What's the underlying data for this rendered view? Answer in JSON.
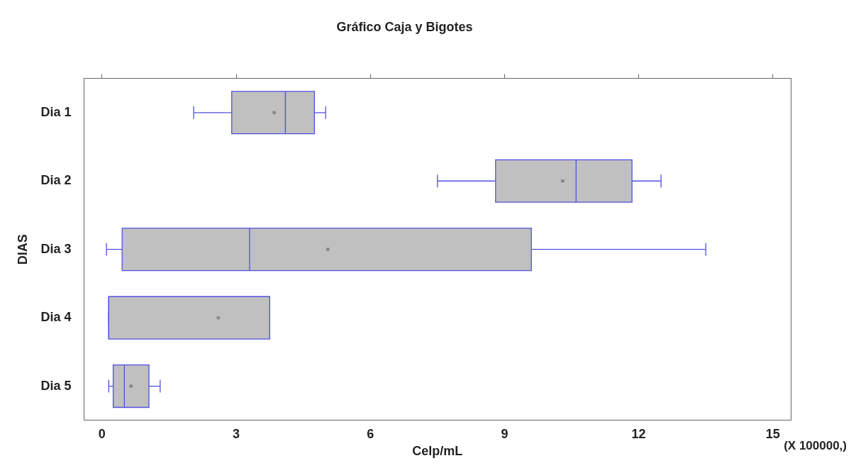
{
  "chart_data": {
    "type": "box",
    "orientation": "horizontal",
    "title": "Gráfico Caja y Bigotes",
    "xlabel": "Celp/mL",
    "ylabel": "DIAS",
    "categories": [
      "Dia 1",
      "Dia 2",
      "Dia 3",
      "Dia 4",
      "Dia 5"
    ],
    "boxes": [
      {
        "low": 2.05,
        "q1": 2.9,
        "median": 4.1,
        "q3": 4.75,
        "high": 5.0,
        "mean": 3.85
      },
      {
        "low": 7.5,
        "q1": 8.8,
        "median": 10.6,
        "q3": 11.85,
        "high": 12.5,
        "mean": 10.3
      },
      {
        "low": 0.1,
        "q1": 0.45,
        "median": 3.3,
        "q3": 9.6,
        "high": 13.5,
        "mean": 5.05
      },
      {
        "low": 0.15,
        "q1": 0.15,
        "median": 0.15,
        "q3": 3.75,
        "high": 3.75,
        "mean": 2.6
      },
      {
        "low": 0.15,
        "q1": 0.25,
        "median": 0.5,
        "q3": 1.05,
        "high": 1.3,
        "mean": 0.65
      }
    ],
    "color": "#c0c0c0",
    "xlim": [
      -0.4,
      15.4
    ],
    "xticks": [
      0,
      3,
      6,
      9,
      12,
      15
    ],
    "grid": false,
    "annotations": [
      "(X 100000,)"
    ]
  }
}
